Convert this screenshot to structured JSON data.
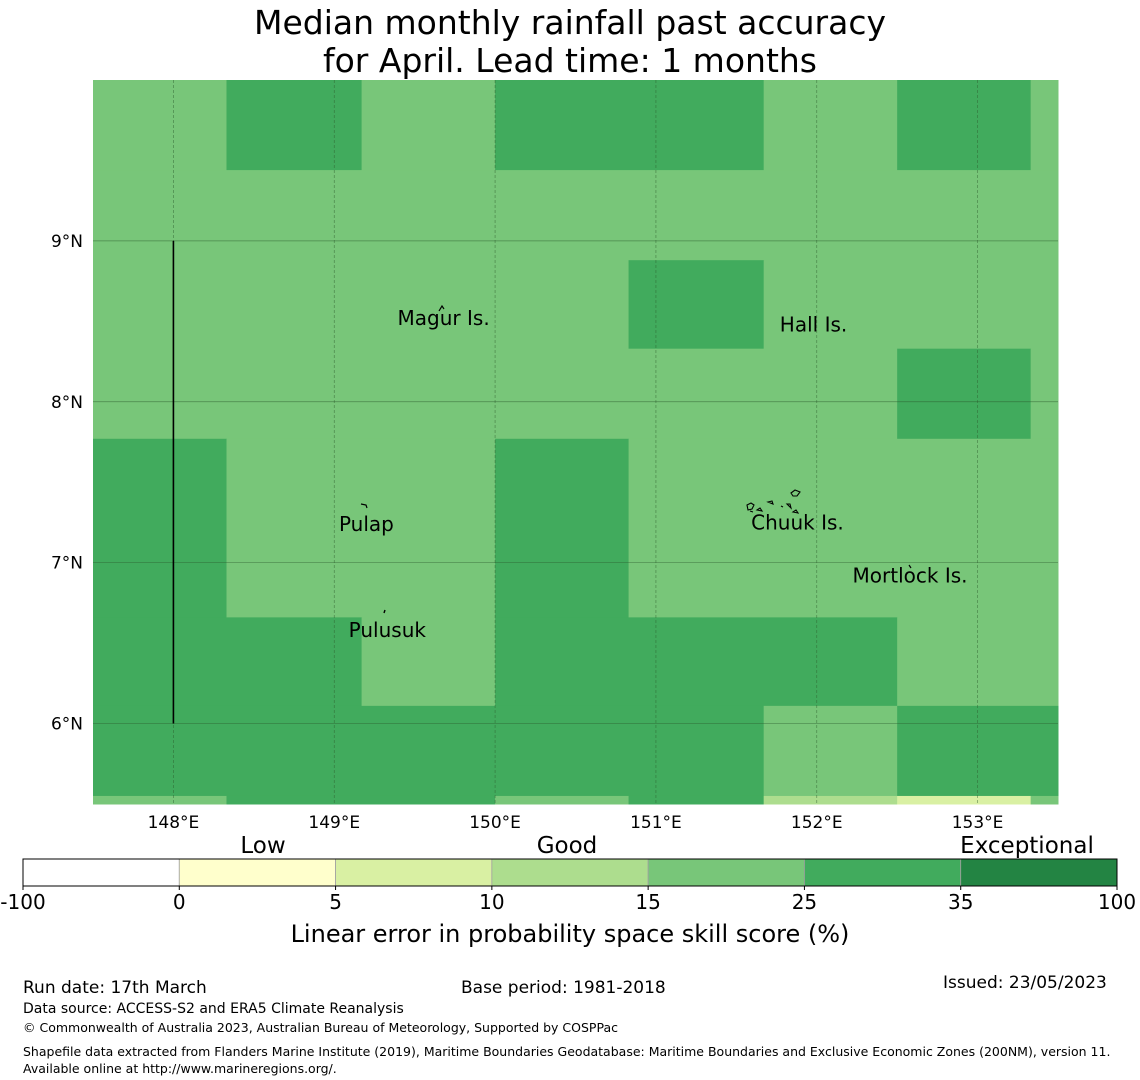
{
  "title": "Median monthly rainfall past accuracy\nfor April. Lead time: 1 months",
  "map": {
    "lon_range": [
      147.5,
      153.5
    ],
    "lat_range": [
      5.5,
      10.0
    ],
    "lon_ticks": [
      {
        "value": 148,
        "label": "148°E"
      },
      {
        "value": 149,
        "label": "149°E"
      },
      {
        "value": 150,
        "label": "150°E"
      },
      {
        "value": 151,
        "label": "151°E"
      },
      {
        "value": 152,
        "label": "152°E"
      },
      {
        "value": 153,
        "label": "153°E"
      }
    ],
    "lat_ticks": [
      {
        "value": 9,
        "label": "9°N"
      },
      {
        "value": 8,
        "label": "8°N"
      },
      {
        "value": 7,
        "label": "7°N"
      },
      {
        "value": 6,
        "label": "6°N"
      }
    ],
    "places": [
      {
        "name": "Magur Is.",
        "lon": 149.68,
        "lat": 8.52
      },
      {
        "name": "Hall Is.",
        "lon": 151.98,
        "lat": 8.48
      },
      {
        "name": "Pulap",
        "lon": 149.2,
        "lat": 7.24
      },
      {
        "name": "Chuuk Is.",
        "lon": 151.88,
        "lat": 7.25
      },
      {
        "name": "Mortlock Is.",
        "lon": 152.58,
        "lat": 6.92
      },
      {
        "name": "Pulusuk",
        "lon": 149.33,
        "lat": 6.58
      }
    ],
    "boundary_line": {
      "lon": 148.0,
      "lat_from": 6.0,
      "lat_to": 9.0
    }
  },
  "chart_data": {
    "type": "heatmap",
    "variable": "Linear error in probability space skill score (%)",
    "cells": [
      {
        "lon": [
          147.5,
          148.33
        ],
        "lat": [
          9.44,
          10.0
        ],
        "value": 20
      },
      {
        "lon": [
          148.33,
          149.17
        ],
        "lat": [
          9.44,
          10.0
        ],
        "value": 30
      },
      {
        "lon": [
          149.17,
          150.0
        ],
        "lat": [
          9.44,
          10.0
        ],
        "value": 20
      },
      {
        "lon": [
          150.0,
          151.67
        ],
        "lat": [
          9.44,
          10.0
        ],
        "value": 30
      },
      {
        "lon": [
          151.67,
          152.5
        ],
        "lat": [
          9.44,
          10.0
        ],
        "value": 20
      },
      {
        "lon": [
          152.5,
          153.33
        ],
        "lat": [
          9.44,
          10.0
        ],
        "value": 30
      },
      {
        "lon": [
          153.33,
          153.5
        ],
        "lat": [
          9.44,
          10.0
        ],
        "value": 20
      },
      {
        "lon": [
          147.5,
          153.5
        ],
        "lat": [
          8.88,
          9.44
        ],
        "value": 20
      },
      {
        "lon": [
          147.5,
          150.83
        ],
        "lat": [
          8.33,
          8.88
        ],
        "value": 20
      },
      {
        "lon": [
          150.83,
          151.67
        ],
        "lat": [
          8.33,
          8.88
        ],
        "value": 30
      },
      {
        "lon": [
          151.67,
          153.5
        ],
        "lat": [
          8.33,
          8.88
        ],
        "value": 20
      },
      {
        "lon": [
          147.5,
          152.5
        ],
        "lat": [
          7.77,
          8.33
        ],
        "value": 20
      },
      {
        "lon": [
          152.5,
          153.33
        ],
        "lat": [
          7.77,
          8.33
        ],
        "value": 30
      },
      {
        "lon": [
          153.33,
          153.5
        ],
        "lat": [
          7.77,
          8.33
        ],
        "value": 20
      },
      {
        "lon": [
          147.5,
          148.33
        ],
        "lat": [
          6.66,
          7.77
        ],
        "value": 30
      },
      {
        "lon": [
          148.33,
          150.0
        ],
        "lat": [
          6.66,
          7.77
        ],
        "value": 20
      },
      {
        "lon": [
          150.0,
          150.83
        ],
        "lat": [
          6.66,
          7.77
        ],
        "value": 30
      },
      {
        "lon": [
          150.83,
          153.5
        ],
        "lat": [
          6.66,
          7.77
        ],
        "value": 20
      },
      {
        "lon": [
          147.5,
          149.17
        ],
        "lat": [
          6.11,
          6.66
        ],
        "value": 30
      },
      {
        "lon": [
          149.17,
          150.0
        ],
        "lat": [
          6.11,
          6.66
        ],
        "value": 20
      },
      {
        "lon": [
          150.0,
          152.5
        ],
        "lat": [
          6.11,
          6.66
        ],
        "value": 30
      },
      {
        "lon": [
          152.5,
          153.5
        ],
        "lat": [
          6.11,
          6.66
        ],
        "value": 20
      },
      {
        "lon": [
          147.5,
          151.67
        ],
        "lat": [
          5.55,
          6.11
        ],
        "value": 30
      },
      {
        "lon": [
          151.67,
          152.5
        ],
        "lat": [
          5.55,
          6.11
        ],
        "value": 20
      },
      {
        "lon": [
          152.5,
          153.5
        ],
        "lat": [
          5.55,
          6.11
        ],
        "value": 30
      },
      {
        "lon": [
          147.5,
          148.33
        ],
        "lat": [
          5.5,
          5.55
        ],
        "value": 20
      },
      {
        "lon": [
          148.33,
          150.0
        ],
        "lat": [
          5.5,
          5.55
        ],
        "value": 30
      },
      {
        "lon": [
          150.0,
          150.83
        ],
        "lat": [
          5.5,
          5.55
        ],
        "value": 20
      },
      {
        "lon": [
          150.83,
          151.67
        ],
        "lat": [
          5.5,
          5.55
        ],
        "value": 30
      },
      {
        "lon": [
          151.67,
          152.5
        ],
        "lat": [
          5.5,
          5.55
        ],
        "value": 12
      },
      {
        "lon": [
          152.5,
          153.33
        ],
        "lat": [
          5.5,
          5.55
        ],
        "value": 7
      },
      {
        "lon": [
          153.33,
          153.5
        ],
        "lat": [
          5.5,
          5.55
        ],
        "value": 20
      }
    ]
  },
  "colorbar": {
    "bins": [
      {
        "from": -100,
        "to": 0,
        "color": "#ffffff"
      },
      {
        "from": 0,
        "to": 5,
        "color": "#ffffcc"
      },
      {
        "from": 5,
        "to": 10,
        "color": "#d9f0a3"
      },
      {
        "from": 10,
        "to": 15,
        "color": "#addd8e"
      },
      {
        "from": 15,
        "to": 25,
        "color": "#78c679"
      },
      {
        "from": 25,
        "to": 35,
        "color": "#41ab5d"
      },
      {
        "from": 35,
        "to": 100,
        "color": "#238443"
      }
    ],
    "tick_labels": [
      "-100",
      "0",
      "5",
      "10",
      "15",
      "25",
      "35",
      "100"
    ],
    "category_labels": {
      "low": "Low",
      "good": "Good",
      "exceptional": "Exceptional"
    },
    "title": "Linear error in probability space skill score (%)"
  },
  "footer": {
    "run_date": "Run date: 17th March",
    "base_period": "Base period: 1981-2018",
    "issued": "Issued: 23/05/2023",
    "data_source": "Data source: ACCESS-S2 and ERA5 Climate Reanalysis",
    "copyright": "© Commonwealth of Australia 2023, Australian Bureau of Meteorology, Supported by COSPPac",
    "shapefile": "Shapefile data extracted from Flanders Marine Institute (2019), Maritime Boundaries Geodatabase: Maritime Boundaries and Exclusive Economic Zones (200NM), version 11. Available online at http://www.marineregions.org/."
  }
}
